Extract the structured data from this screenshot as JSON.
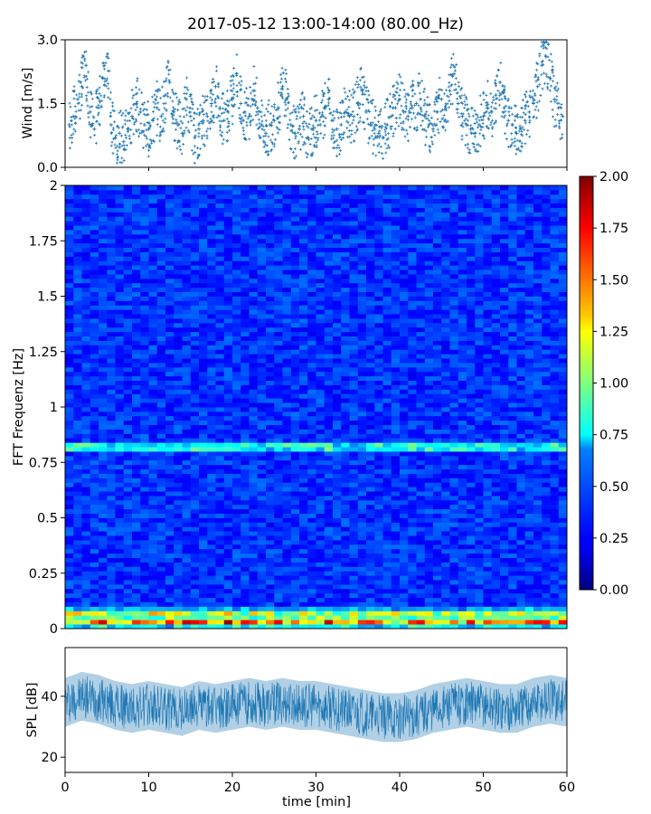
{
  "figure": {
    "title": "2017-05-12 13:00-14:00 (80.00_Hz)"
  },
  "chart_data": [
    {
      "id": "wind",
      "type": "scatter",
      "title": "",
      "xlabel": "",
      "ylabel": "Wind [m/s]",
      "xlim": [
        0,
        60
      ],
      "ylim": [
        0,
        3.0
      ],
      "yticks": [
        0.0,
        1.5,
        3.0
      ],
      "ytick_labels": [
        "0.0",
        "1.5",
        "3.0"
      ],
      "xticks": [
        0,
        10,
        20,
        30,
        40,
        50,
        60
      ],
      "color": "#1f77b4",
      "marker": "+",
      "grid": false,
      "x": [
        0.5,
        1.0,
        1.5,
        2.0,
        2.5,
        3.0,
        3.5,
        4.0,
        4.5,
        5.0,
        5.5,
        6.0,
        6.5,
        7.0,
        7.5,
        8.0,
        8.5,
        9.0,
        9.5,
        10.0,
        10.5,
        11.0,
        11.5,
        12.0,
        12.5,
        13.0,
        13.5,
        14.0,
        14.5,
        15.0,
        15.5,
        16.0,
        16.5,
        17.0,
        17.5,
        18.0,
        18.5,
        19.0,
        19.5,
        20.0,
        20.5,
        21.0,
        21.5,
        22.0,
        22.5,
        23.0,
        23.5,
        24.0,
        24.5,
        25.0,
        25.5,
        26.0,
        26.5,
        27.0,
        27.5,
        28.0,
        28.5,
        29.0,
        29.5,
        30.0,
        30.5,
        31.0,
        31.5,
        32.0,
        32.5,
        33.0,
        33.5,
        34.0,
        34.5,
        35.0,
        35.5,
        36.0,
        36.5,
        37.0,
        37.5,
        38.0,
        38.5,
        39.0,
        39.5,
        40.0,
        40.5,
        41.0,
        41.5,
        42.0,
        42.5,
        43.0,
        43.5,
        44.0,
        44.5,
        45.0,
        45.5,
        46.0,
        46.5,
        47.0,
        47.5,
        48.0,
        48.5,
        49.0,
        49.5,
        50.0,
        50.5,
        51.0,
        51.5,
        52.0,
        52.5,
        53.0,
        53.5,
        54.0,
        54.5,
        55.0,
        55.5,
        56.0,
        56.5,
        57.0,
        57.5,
        58.0,
        58.5,
        59.0,
        59.5
      ],
      "y": [
        1.0,
        1.2,
        1.6,
        1.9,
        2.4,
        1.3,
        0.9,
        1.4,
        2.1,
        2.6,
        1.0,
        0.7,
        0.8,
        0.6,
        0.9,
        1.2,
        1.5,
        1.3,
        1.0,
        0.9,
        1.1,
        1.4,
        1.2,
        1.7,
        2.0,
        1.3,
        1.0,
        0.8,
        1.6,
        1.2,
        0.7,
        0.9,
        1.1,
        1.2,
        1.5,
        1.9,
        1.4,
        1.1,
        1.3,
        1.6,
        2.2,
        1.5,
        1.3,
        1.2,
        1.8,
        1.4,
        1.0,
        0.8,
        1.0,
        1.1,
        1.4,
        1.9,
        1.6,
        1.0,
        0.8,
        0.9,
        1.2,
        0.7,
        0.9,
        1.1,
        1.0,
        1.4,
        1.6,
        1.1,
        0.9,
        1.0,
        1.3,
        1.2,
        1.2,
        1.5,
        1.8,
        1.3,
        1.0,
        0.9,
        0.8,
        0.7,
        1.0,
        1.2,
        1.4,
        1.6,
        1.3,
        1.2,
        1.4,
        1.5,
        1.6,
        1.2,
        1.0,
        0.9,
        1.3,
        1.6,
        1.4,
        1.8,
        2.2,
        1.5,
        1.2,
        1.0,
        0.9,
        0.8,
        1.0,
        1.2,
        1.4,
        1.3,
        1.7,
        2.0,
        1.4,
        1.1,
        1.0,
        0.8,
        0.9,
        1.1,
        1.3,
        1.5,
        1.9,
        2.4,
        2.6,
        2.1,
        1.6,
        1.4,
        1.2
      ]
    },
    {
      "id": "spectrogram",
      "type": "heatmap",
      "title": "",
      "xlabel": "",
      "ylabel": "FFT Frequenz [Hz]",
      "xlim": [
        0,
        60
      ],
      "ylim": [
        0,
        2
      ],
      "yticks": [
        0,
        0.25,
        0.5,
        0.75,
        1,
        1.25,
        1.5,
        1.75,
        2
      ],
      "ytick_labels": [
        "0",
        "0.25",
        "0.5",
        "0.75",
        "1",
        "1.25",
        "1.5",
        "1.75",
        "2"
      ],
      "xticks": [
        0,
        10,
        20,
        30,
        40,
        50,
        60
      ],
      "colormap": "jet",
      "colorbar": {
        "range": [
          0,
          2
        ],
        "ticks": [
          0,
          0.25,
          0.5,
          0.75,
          1,
          1.25,
          1.5,
          1.75,
          2
        ],
        "tick_labels": [
          "0.00",
          "0.25",
          "0.50",
          "0.75",
          "1.00",
          "1.25",
          "1.50",
          "1.75",
          "2.00"
        ]
      },
      "features": [
        {
          "freq": 0.82,
          "from_min": 0,
          "to_min": 60,
          "level": 0.8
        },
        {
          "freq": 0.03,
          "from_min": 0,
          "to_min": 60,
          "level": 1.4
        },
        {
          "freq": 0.07,
          "from_min": 0,
          "to_min": 60,
          "level": 0.9
        }
      ]
    },
    {
      "id": "spl",
      "type": "area",
      "title": "",
      "xlabel": "time [min]",
      "ylabel": "SPL [dB]",
      "xlim": [
        0,
        60
      ],
      "ylim": [
        15,
        56
      ],
      "yticks": [
        20,
        40
      ],
      "ytick_labels": [
        "20",
        "40"
      ],
      "xticks": [
        0,
        10,
        20,
        30,
        40,
        50,
        60
      ],
      "xtick_labels": [
        "0",
        "10",
        "20",
        "30",
        "40",
        "50",
        "60"
      ],
      "color": "#1f77b4",
      "x": [
        0,
        2,
        4,
        6,
        8,
        10,
        12,
        14,
        16,
        18,
        20,
        22,
        24,
        26,
        28,
        30,
        32,
        34,
        36,
        38,
        40,
        42,
        44,
        46,
        48,
        50,
        52,
        54,
        56,
        58,
        60
      ],
      "mean": [
        38,
        40,
        39,
        37,
        36,
        37,
        36,
        35,
        37,
        36,
        37,
        38,
        37,
        38,
        37,
        37,
        36,
        35,
        34,
        33,
        33,
        34,
        36,
        37,
        38,
        37,
        36,
        36,
        38,
        39,
        38
      ],
      "low": [
        30,
        32,
        31,
        29,
        28,
        29,
        28,
        27,
        29,
        28,
        29,
        30,
        29,
        30,
        29,
        29,
        28,
        27,
        26,
        25,
        25,
        26,
        28,
        29,
        30,
        29,
        28,
        28,
        30,
        31,
        30
      ],
      "high": [
        46,
        48,
        47,
        45,
        44,
        45,
        44,
        43,
        45,
        44,
        45,
        46,
        45,
        46,
        45,
        45,
        44,
        43,
        42,
        41,
        41,
        42,
        44,
        45,
        46,
        45,
        44,
        44,
        46,
        47,
        46
      ]
    }
  ]
}
